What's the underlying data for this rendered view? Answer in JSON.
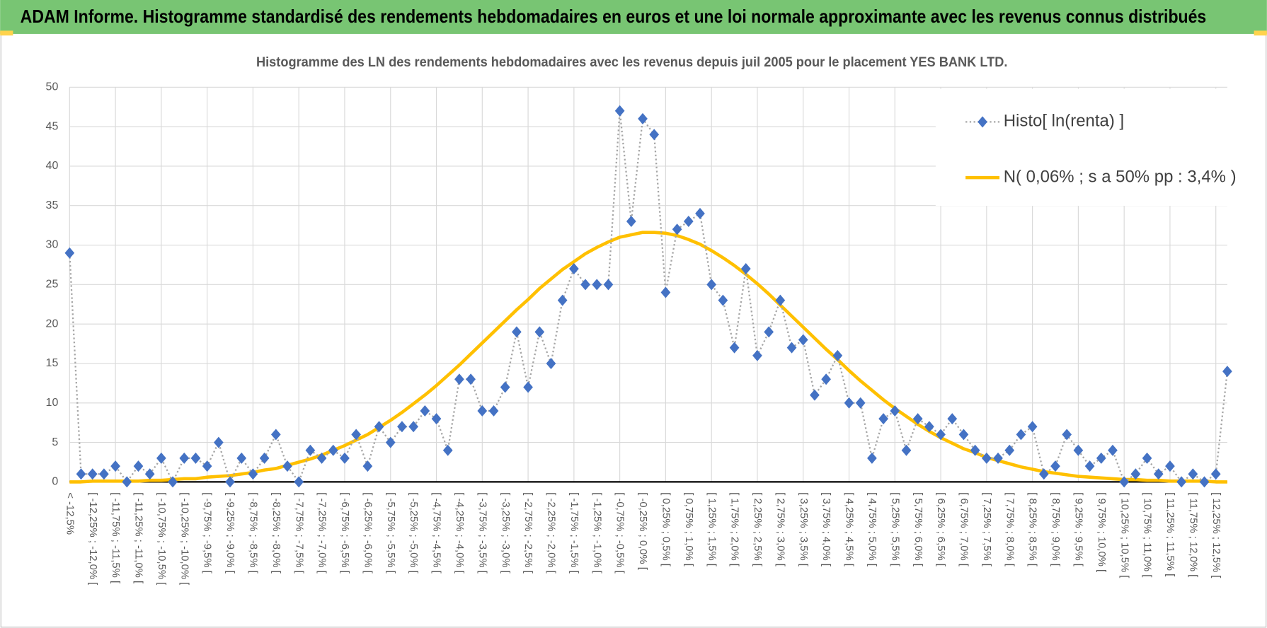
{
  "chart_data": {
    "type": "line",
    "title": "ADAM Informe. Histogramme standardisé des rendements hebdomadaires en euros et une loi normale approximante avec les revenus connus distribués",
    "subtitle": "Histogramme des LN des rendements hebdomadaires avec les revenus depuis juil 2005 pour le placement YES BANK LTD.",
    "categories": [
      "< -12,5%",
      null,
      "[ -12,25% ; -12,0% [",
      null,
      "[ -11,75% ; -11,5% [",
      null,
      "[ -11,25% ; -11,0% [",
      null,
      "[ -10,75% ; -10,5% [",
      null,
      "[ -10,25% ; -10,0% [",
      null,
      "[ -9,75% ; -9,5% [",
      null,
      "[ -9,25% ; -9,0% [",
      null,
      "[ -8,75% ; -8,5% [",
      null,
      "[ -8,25% ; -8,0% [",
      null,
      "[ -7,75% ; -7,5% [",
      null,
      "[ -7,25% ; -7,0% [",
      null,
      "[ -6,75% ; -6,5% [",
      null,
      "[ -6,25% ; -6,0% [",
      null,
      "[ -5,75% ; -5,5% [",
      null,
      "[ -5,25% ; -5,0% [",
      null,
      "[ -4,75% ; -4,5% [",
      null,
      "[ -4,25% ; -4,0% [",
      null,
      "[ -3,75% ; -3,5% [",
      null,
      "[ -3,25% ; -3,0% [",
      null,
      "[ -2,75% ; -2,5% [",
      null,
      "[ -2,25% ; -2,0% [",
      null,
      "[ -1,75% ; -1,5% [",
      null,
      "[ -1,25% ; -1,0% [",
      null,
      "[ -0,75% ; -0,5% [",
      null,
      "[ -0,25% ; 0,0% [",
      null,
      "[ 0,25% ; 0,5% [",
      null,
      "[ 0,75% ; 1,0% [",
      null,
      "[ 1,25% ; 1,5% [",
      null,
      "[ 1,75% ; 2,0% [",
      null,
      "[ 2,25% ; 2,5% [",
      null,
      "[ 2,75% ; 3,0% [",
      null,
      "[ 3,25% ; 3,5% [",
      null,
      "[ 3,75% ; 4,0% [",
      null,
      "[ 4,25% ; 4,5% [",
      null,
      "[ 4,75% ; 5,0% [",
      null,
      "[ 5,25% ; 5,5% [",
      null,
      "[ 5,75% ; 6,0% [",
      null,
      "[ 6,25% ; 6,5% [",
      null,
      "[ 6,75% ; 7,0% [",
      null,
      "[ 7,25% ; 7,5% [",
      null,
      "[ 7,75% ; 8,0% [",
      null,
      "[ 8,25% ; 8,5% [",
      null,
      "[ 8,75% ; 9,0% [",
      null,
      "[ 9,25% ; 9,5% [",
      null,
      "[ 9,75% ; 10,0% [",
      null,
      "[ 10,25% ; 10,5% [",
      null,
      "[ 10,75% ; 11,0% [",
      null,
      "[ 11,25% ; 11,5% [",
      null,
      "[ 11,75% ; 12,0% [",
      null,
      "[ 12,25% ; 12,5% [",
      null
    ],
    "series": [
      {
        "name": "Histo[ ln(renta) ]",
        "color": "#4472c4",
        "line_color": "#a6a6a6",
        "line_style": "dotted",
        "marker": "diamond",
        "values": [
          29,
          1,
          1,
          1,
          2,
          0,
          2,
          1,
          3,
          0,
          3,
          3,
          2,
          5,
          0,
          3,
          1,
          3,
          6,
          2,
          0,
          4,
          3,
          4,
          3,
          6,
          2,
          7,
          5,
          7,
          7,
          9,
          8,
          4,
          13,
          13,
          9,
          9,
          12,
          19,
          12,
          19,
          15,
          23,
          27,
          25,
          25,
          25,
          47,
          33,
          46,
          44,
          24,
          32,
          33,
          34,
          25,
          23,
          17,
          27,
          16,
          19,
          23,
          17,
          18,
          11,
          13,
          16,
          10,
          10,
          3,
          8,
          9,
          4,
          8,
          7,
          6,
          8,
          6,
          4,
          3,
          3,
          4,
          6,
          7,
          1,
          2,
          6,
          4,
          2,
          3,
          4,
          0,
          1,
          3,
          1,
          2,
          0,
          1,
          0,
          1,
          14
        ]
      },
      {
        "name": "N( 0,06% ; s a 50% pp : 3,4% )",
        "color": "#ffc000",
        "line_color": "#ffc000",
        "line_style": "solid",
        "marker": "none",
        "values": [
          0,
          0,
          0.1,
          0.1,
          0.1,
          0.1,
          0.1,
          0.2,
          0.2,
          0.3,
          0.4,
          0.4,
          0.6,
          0.7,
          0.8,
          1.0,
          1.2,
          1.5,
          1.7,
          2.1,
          2.5,
          2.9,
          3.4,
          4.0,
          4.6,
          5.3,
          6.0,
          6.9,
          7.8,
          8.8,
          9.9,
          11.0,
          12.2,
          13.5,
          14.8,
          16.2,
          17.6,
          19.0,
          20.4,
          21.8,
          23.1,
          24.5,
          25.7,
          26.9,
          27.9,
          28.9,
          29.7,
          30.4,
          31.0,
          31.3,
          31.6,
          31.6,
          31.5,
          31.2,
          30.7,
          30.1,
          29.3,
          28.4,
          27.4,
          26.3,
          25.1,
          23.8,
          22.4,
          21.0,
          19.6,
          18.2,
          16.8,
          15.5,
          14.1,
          12.8,
          11.6,
          10.4,
          9.3,
          8.3,
          7.3,
          6.4,
          5.6,
          4.9,
          4.2,
          3.7,
          3.1,
          2.7,
          2.3,
          1.9,
          1.6,
          1.3,
          1.1,
          0.9,
          0.7,
          0.6,
          0.5,
          0.4,
          0.3,
          0.3,
          0.2,
          0.2,
          0.1,
          0.1,
          0.1,
          0.1,
          0,
          0
        ]
      }
    ],
    "ylim": [
      0,
      50
    ],
    "yticks": [
      0,
      5,
      10,
      15,
      20,
      25,
      30,
      35,
      40,
      45,
      50
    ],
    "grid": true,
    "legend": "upper right"
  }
}
